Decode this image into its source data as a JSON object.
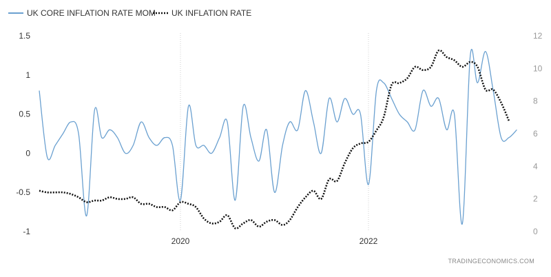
{
  "chart_data": {
    "type": "line",
    "legend": {
      "placement": "top-left"
    },
    "grid": {
      "vertical": true,
      "horizontal": false,
      "style": "dotted"
    },
    "x_range": [
      "2018-07-01",
      "2023-09-01"
    ],
    "x_ticks": [
      {
        "date": "2020-01-01",
        "label": "2020"
      },
      {
        "date": "2022-01-01",
        "label": "2022"
      }
    ],
    "y_left": {
      "range": [
        -1,
        1.5
      ],
      "ticks": [
        -1,
        -0.5,
        0,
        0.5,
        1,
        1.5
      ],
      "labels": [
        "-1",
        "-0.5",
        "0",
        "0.5",
        "1",
        "1.5"
      ]
    },
    "y_right": {
      "range": [
        0,
        12
      ],
      "ticks": [
        0,
        2,
        4,
        6,
        8,
        10,
        12
      ],
      "labels": [
        "0",
        "2",
        "4",
        "6",
        "8",
        "10",
        "12"
      ]
    },
    "series": [
      {
        "name": "UK CORE INFLATION RATE MOM",
        "axis": "left",
        "color": "#6aa0d0",
        "style": "solid",
        "points": [
          [
            "2018-07-01",
            0.8
          ],
          [
            "2018-08-01",
            -0.05
          ],
          [
            "2018-09-01",
            0.1
          ],
          [
            "2018-10-01",
            0.25
          ],
          [
            "2018-11-01",
            0.4
          ],
          [
            "2018-12-01",
            0.25
          ],
          [
            "2019-01-01",
            -0.8
          ],
          [
            "2019-02-01",
            0.55
          ],
          [
            "2019-03-01",
            0.2
          ],
          [
            "2019-04-01",
            0.3
          ],
          [
            "2019-05-01",
            0.2
          ],
          [
            "2019-06-01",
            0.0
          ],
          [
            "2019-07-01",
            0.1
          ],
          [
            "2019-08-01",
            0.4
          ],
          [
            "2019-09-01",
            0.2
          ],
          [
            "2019-10-01",
            0.1
          ],
          [
            "2019-11-01",
            0.2
          ],
          [
            "2019-12-01",
            0.1
          ],
          [
            "2020-01-01",
            -0.6
          ],
          [
            "2020-02-01",
            0.6
          ],
          [
            "2020-03-01",
            0.1
          ],
          [
            "2020-04-01",
            0.1
          ],
          [
            "2020-05-01",
            0.0
          ],
          [
            "2020-06-01",
            0.2
          ],
          [
            "2020-07-01",
            0.4
          ],
          [
            "2020-08-01",
            -0.6
          ],
          [
            "2020-09-01",
            0.6
          ],
          [
            "2020-10-01",
            0.2
          ],
          [
            "2020-11-01",
            -0.1
          ],
          [
            "2020-12-01",
            0.3
          ],
          [
            "2021-01-01",
            -0.5
          ],
          [
            "2021-02-01",
            0.1
          ],
          [
            "2021-03-01",
            0.4
          ],
          [
            "2021-04-01",
            0.3
          ],
          [
            "2021-05-01",
            0.8
          ],
          [
            "2021-06-01",
            0.4
          ],
          [
            "2021-07-01",
            0.0
          ],
          [
            "2021-08-01",
            0.7
          ],
          [
            "2021-09-01",
            0.4
          ],
          [
            "2021-10-01",
            0.7
          ],
          [
            "2021-11-01",
            0.5
          ],
          [
            "2021-12-01",
            0.5
          ],
          [
            "2022-01-01",
            -0.4
          ],
          [
            "2022-02-01",
            0.8
          ],
          [
            "2022-03-01",
            0.9
          ],
          [
            "2022-04-01",
            0.7
          ],
          [
            "2022-05-01",
            0.5
          ],
          [
            "2022-06-01",
            0.4
          ],
          [
            "2022-07-01",
            0.3
          ],
          [
            "2022-08-01",
            0.8
          ],
          [
            "2022-09-01",
            0.6
          ],
          [
            "2022-10-01",
            0.7
          ],
          [
            "2022-11-01",
            0.3
          ],
          [
            "2022-12-01",
            0.5
          ],
          [
            "2023-01-01",
            -0.9
          ],
          [
            "2023-02-01",
            1.25
          ],
          [
            "2023-03-01",
            0.9
          ],
          [
            "2023-04-01",
            1.3
          ],
          [
            "2023-05-01",
            0.8
          ],
          [
            "2023-06-01",
            0.2
          ],
          [
            "2023-07-01",
            0.2
          ],
          [
            "2023-08-01",
            0.3
          ]
        ]
      },
      {
        "name": "UK INFLATION RATE",
        "axis": "right",
        "color": "#111111",
        "style": "dotted",
        "points": [
          [
            "2018-07-01",
            2.5
          ],
          [
            "2018-08-01",
            2.4
          ],
          [
            "2018-09-01",
            2.4
          ],
          [
            "2018-10-01",
            2.4
          ],
          [
            "2018-11-01",
            2.3
          ],
          [
            "2018-12-01",
            2.1
          ],
          [
            "2019-01-01",
            1.8
          ],
          [
            "2019-02-01",
            1.9
          ],
          [
            "2019-03-01",
            1.9
          ],
          [
            "2019-04-01",
            2.1
          ],
          [
            "2019-05-01",
            2.0
          ],
          [
            "2019-06-01",
            2.0
          ],
          [
            "2019-07-01",
            2.1
          ],
          [
            "2019-08-01",
            1.7
          ],
          [
            "2019-09-01",
            1.7
          ],
          [
            "2019-10-01",
            1.5
          ],
          [
            "2019-11-01",
            1.5
          ],
          [
            "2019-12-01",
            1.3
          ],
          [
            "2020-01-01",
            1.8
          ],
          [
            "2020-02-01",
            1.7
          ],
          [
            "2020-03-01",
            1.5
          ],
          [
            "2020-04-01",
            0.8
          ],
          [
            "2020-05-01",
            0.5
          ],
          [
            "2020-06-01",
            0.6
          ],
          [
            "2020-07-01",
            1.0
          ],
          [
            "2020-08-01",
            0.2
          ],
          [
            "2020-09-01",
            0.5
          ],
          [
            "2020-10-01",
            0.7
          ],
          [
            "2020-11-01",
            0.3
          ],
          [
            "2020-12-01",
            0.6
          ],
          [
            "2021-01-01",
            0.7
          ],
          [
            "2021-02-01",
            0.4
          ],
          [
            "2021-03-01",
            0.7
          ],
          [
            "2021-04-01",
            1.5
          ],
          [
            "2021-05-01",
            2.1
          ],
          [
            "2021-06-01",
            2.5
          ],
          [
            "2021-07-01",
            2.0
          ],
          [
            "2021-08-01",
            3.2
          ],
          [
            "2021-09-01",
            3.1
          ],
          [
            "2021-10-01",
            4.2
          ],
          [
            "2021-11-01",
            5.1
          ],
          [
            "2021-12-01",
            5.4
          ],
          [
            "2022-01-01",
            5.5
          ],
          [
            "2022-02-01",
            6.2
          ],
          [
            "2022-03-01",
            7.0
          ],
          [
            "2022-04-01",
            9.0
          ],
          [
            "2022-05-01",
            9.1
          ],
          [
            "2022-06-01",
            9.4
          ],
          [
            "2022-07-01",
            10.1
          ],
          [
            "2022-08-01",
            9.9
          ],
          [
            "2022-09-01",
            10.1
          ],
          [
            "2022-10-01",
            11.1
          ],
          [
            "2022-11-01",
            10.7
          ],
          [
            "2022-12-01",
            10.5
          ],
          [
            "2023-01-01",
            10.1
          ],
          [
            "2023-02-01",
            10.4
          ],
          [
            "2023-03-01",
            10.1
          ],
          [
            "2023-04-01",
            8.7
          ],
          [
            "2023-05-01",
            8.7
          ],
          [
            "2023-06-01",
            7.9
          ],
          [
            "2023-07-01",
            6.8
          ]
        ]
      }
    ]
  },
  "source_label": "TRADINGECONOMICS.COM"
}
